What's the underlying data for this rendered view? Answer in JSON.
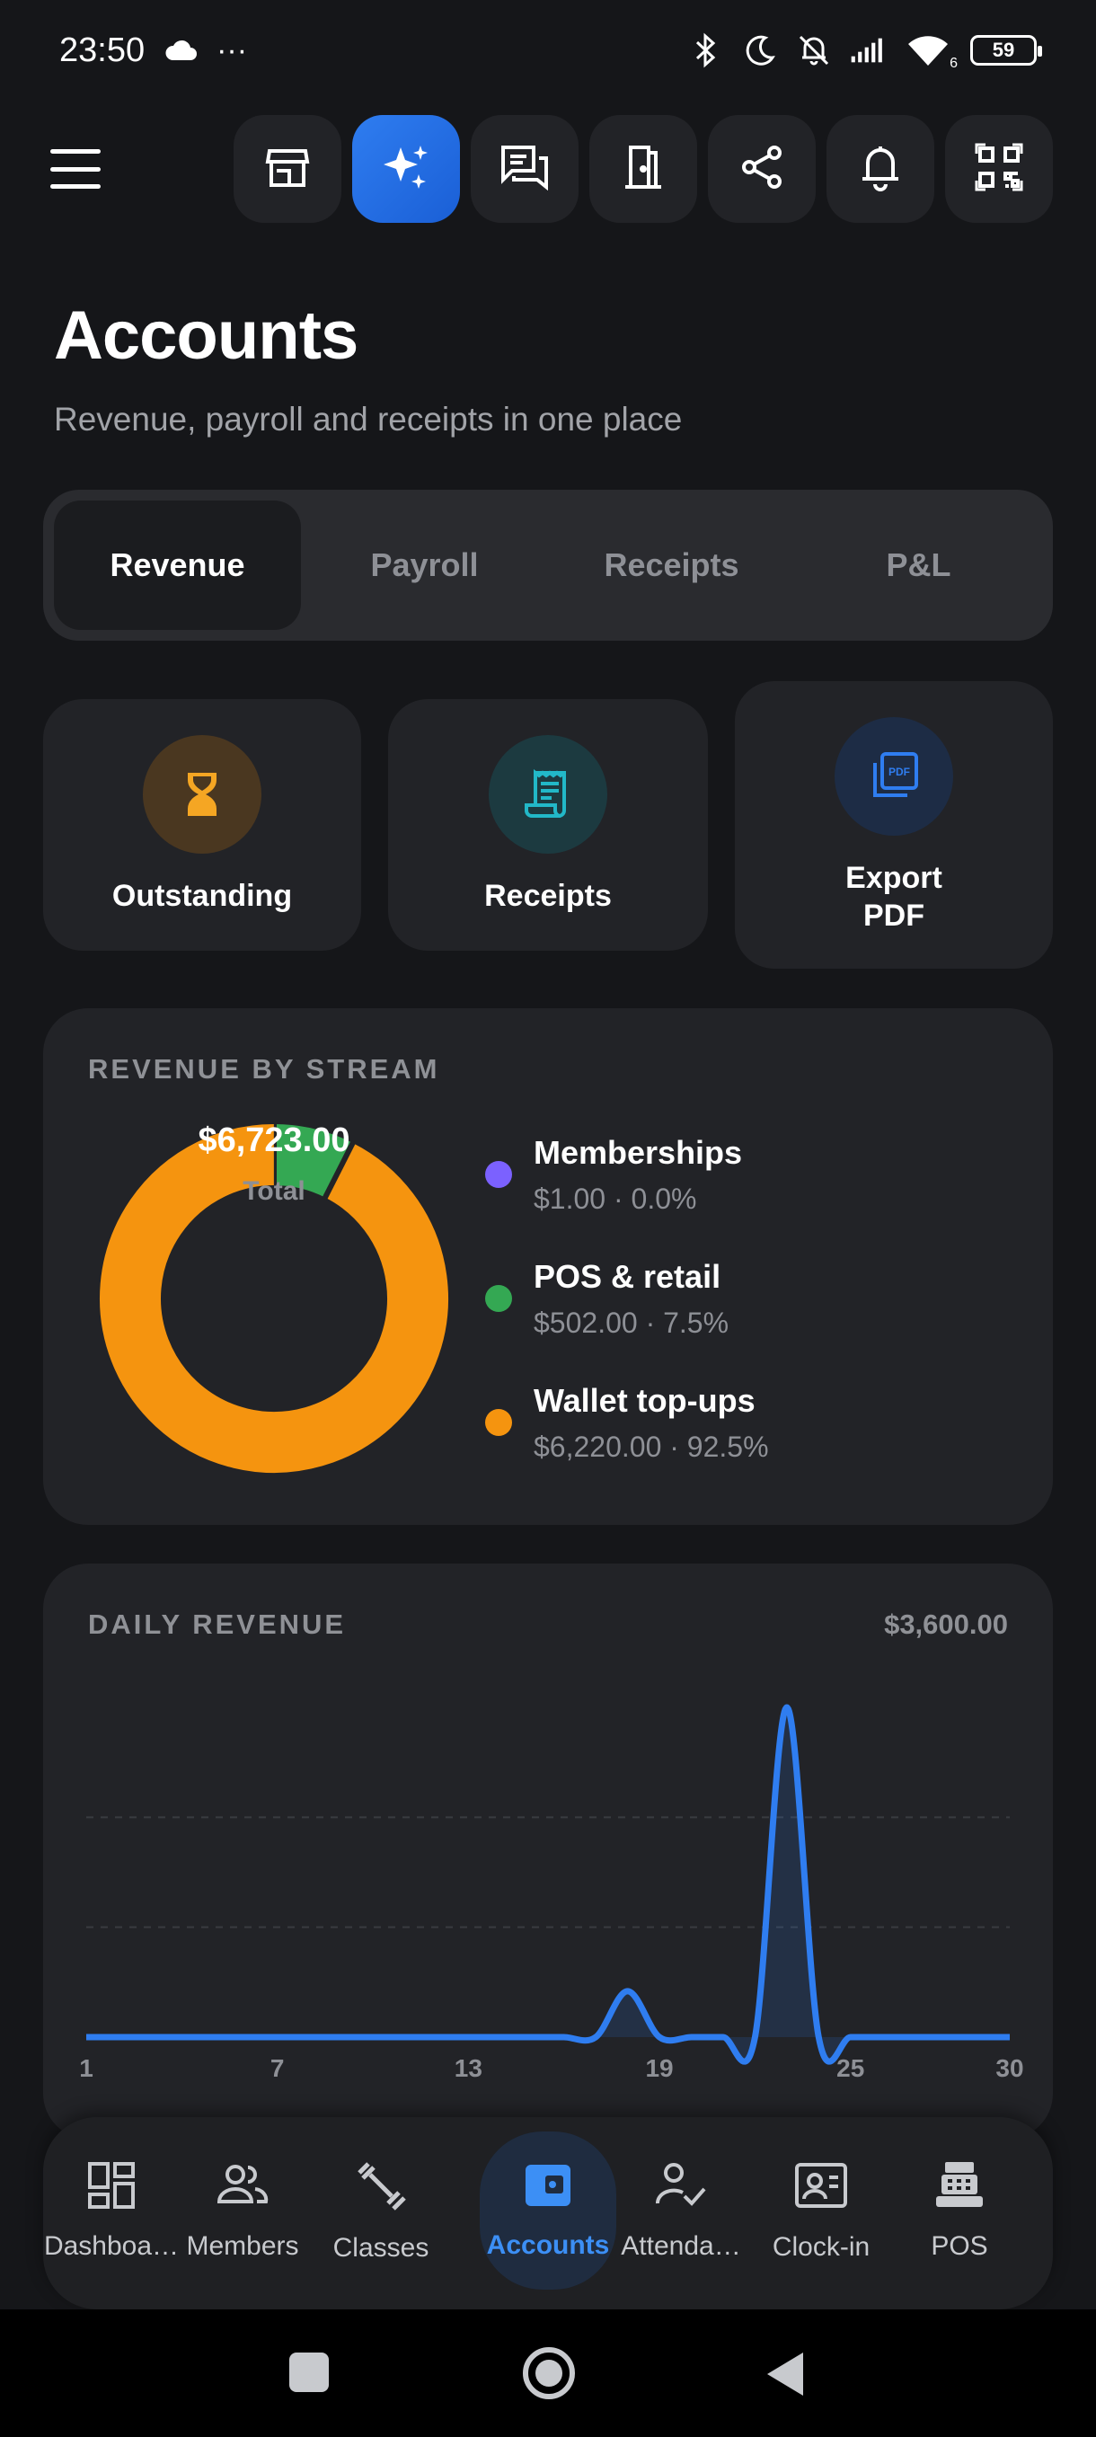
{
  "status_bar": {
    "time": "23:50",
    "more": "···",
    "battery": "59",
    "signal_sub": "6"
  },
  "top_bar": {
    "buttons": [
      {
        "icon": "store-icon",
        "active": false
      },
      {
        "icon": "sparkle-icon",
        "active": true
      },
      {
        "icon": "chat-icon",
        "active": false
      },
      {
        "icon": "door-icon",
        "active": false
      },
      {
        "icon": "share-icon",
        "active": false
      },
      {
        "icon": "bell-icon",
        "active": false
      },
      {
        "icon": "qr-code-icon",
        "active": false
      }
    ]
  },
  "header": {
    "title": "Accounts",
    "subtitle": "Revenue, payroll and receipts in one place"
  },
  "tabs": [
    {
      "label": "Revenue",
      "active": true
    },
    {
      "label": "Payroll",
      "active": false
    },
    {
      "label": "Receipts",
      "active": false
    },
    {
      "label": "P&L",
      "active": false
    }
  ],
  "quick_actions": {
    "outstanding": {
      "label": "Outstanding",
      "icon": "hourglass-icon",
      "color": "#f5a623"
    },
    "receipts": {
      "label": "Receipts",
      "icon": "receipt-icon",
      "color": "#22b8c8"
    },
    "export_pdf": {
      "label_line1": "Export",
      "label_line2": "PDF",
      "icon": "pdf-icon",
      "color": "#2f7df0"
    }
  },
  "revenue_by_stream": {
    "title": "REVENUE BY STREAM",
    "total_value": "$6,723.00",
    "total_label": "Total",
    "items": [
      {
        "name": "Memberships",
        "detail": "$1.00  ·  0.0%",
        "color": "#7b61ff"
      },
      {
        "name": "POS & retail",
        "detail": "$502.00  ·  7.5%",
        "color": "#34a853"
      },
      {
        "name": "Wallet top-ups",
        "detail": "$6,220.00  ·  92.5%",
        "color": "#f5940f"
      }
    ]
  },
  "daily_revenue": {
    "title": "DAILY REVENUE",
    "max_label": "$3,600.00"
  },
  "chart_data": [
    {
      "type": "pie",
      "title": "REVENUE BY STREAM",
      "categories": [
        "Memberships",
        "POS & retail",
        "Wallet top-ups"
      ],
      "values": [
        1.0,
        502.0,
        6220.0
      ],
      "colors": [
        "#7b61ff",
        "#34a853",
        "#f5940f"
      ]
    },
    {
      "type": "line",
      "title": "DAILY REVENUE",
      "x": [
        1,
        2,
        3,
        4,
        5,
        6,
        7,
        8,
        9,
        10,
        11,
        12,
        13,
        14,
        15,
        16,
        17,
        18,
        19,
        20,
        21,
        22,
        23,
        24,
        25,
        26,
        27,
        28,
        29,
        30
      ],
      "series": [
        {
          "values": [
            0,
            0,
            0,
            0,
            0,
            0,
            0,
            0,
            0,
            0,
            0,
            0,
            0,
            0,
            0,
            0,
            0,
            502,
            0,
            0,
            0,
            0,
            3600,
            0,
            0,
            0,
            0,
            0,
            0,
            0
          ]
        }
      ],
      "x_ticks": [
        "1",
        "7",
        "13",
        "19",
        "25",
        "30"
      ],
      "ylim": [
        0,
        3600
      ],
      "grid": "dashed horizontal",
      "color": "#2f7df0"
    }
  ],
  "bottom_nav": [
    {
      "label": "Dashboa…",
      "icon": "dashboard-icon",
      "active": false
    },
    {
      "label": "Members",
      "icon": "members-icon",
      "active": false
    },
    {
      "label": "Classes",
      "icon": "dumbbell-icon",
      "active": false
    },
    {
      "label": "Accounts",
      "icon": "wallet-icon",
      "active": true
    },
    {
      "label": "Attenda…",
      "icon": "attendance-icon",
      "active": false
    },
    {
      "label": "Clock-in",
      "icon": "clock-in-icon",
      "active": false
    },
    {
      "label": "POS",
      "icon": "cash-register-icon",
      "active": false
    }
  ]
}
